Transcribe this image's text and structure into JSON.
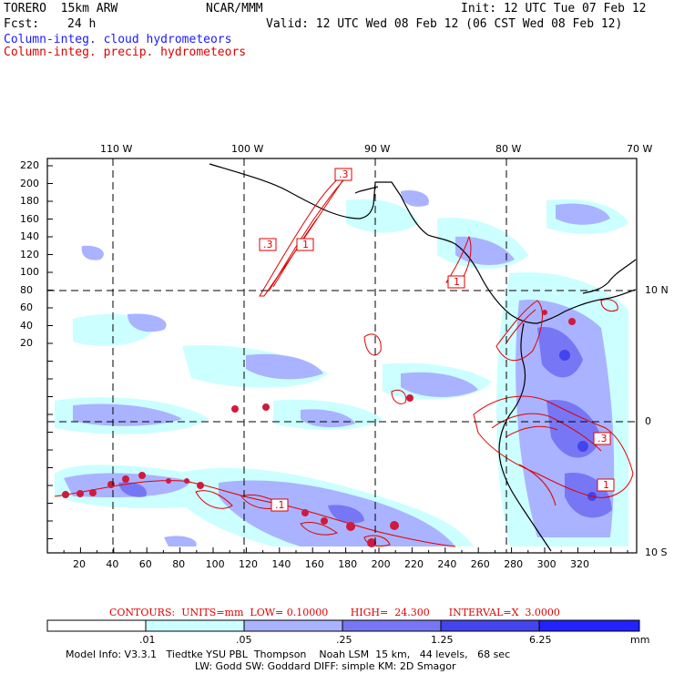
{
  "header": {
    "model": "TORERO  15km ARW",
    "org": "NCAR/MMM",
    "init": "Init: 12 UTC Tue 07 Feb 12",
    "fcst_label": "Fcst:",
    "fcst_value": "24 h",
    "valid": "Valid: 12 UTC Wed 08 Feb 12 (06 CST Wed 08 Feb 12)",
    "field1": "Column-integ. cloud hydrometeors",
    "field2": "Column-integ. precip. hydrometeors"
  },
  "map": {
    "lon_labels": [
      "110 W",
      "100 W",
      "90 W",
      "80 W",
      "70 W"
    ],
    "lat_labels": [
      "10 N",
      "0",
      "10 S"
    ],
    "y_ticks": [
      "220",
      "200",
      "180",
      "160",
      "140",
      "120",
      "100",
      "80",
      "60",
      "40",
      "20"
    ],
    "x_ticks": [
      "20",
      "40",
      "60",
      "80",
      "100",
      "120",
      "140",
      "160",
      "180",
      "200",
      "220",
      "240",
      "260",
      "280",
      "300",
      "320"
    ],
    "contour_labels": [
      ".3",
      ".3",
      "1",
      "1",
      ".1",
      ".3",
      "1"
    ],
    "colors": {
      "light": "#ccffff",
      "medium": "#aab3ff",
      "dark": "#7777f5",
      "darker": "#4444ee",
      "darkest": "#2222ff",
      "contour": "#e00000",
      "coast": "#000000"
    }
  },
  "contour_info": {
    "units": "CONTOURS:  UNITS=mm  LOW= 0.10000",
    "high": "HIGH=  24.300",
    "interval": "INTERVAL=X  3.0000"
  },
  "colorbar": {
    "labels": [
      ".01",
      ".05",
      ".25",
      "1.25",
      "6.25"
    ],
    "unit": "mm",
    "colors": [
      "#ffffff",
      "#ccffff",
      "#aab3ff",
      "#7777f5",
      "#4444ee",
      "#2222ff"
    ]
  },
  "footer": {
    "line1": "Model Info: V3.3.1   Tiedtke YSU PBL  Thompson    Noah LSM  15 km,   44 levels,   68 sec",
    "line2": "LW: Godd SW: Goddard DIFF: simple KM: 2D Smagor"
  }
}
